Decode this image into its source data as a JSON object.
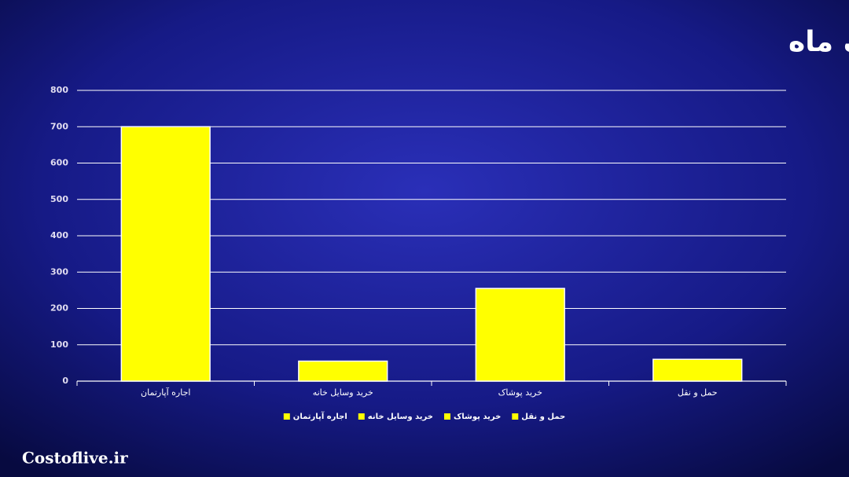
{
  "chart_data": {
    "type": "bar",
    "title": "کلیات هزینه ها برای یک ماه",
    "categories": [
      "اجاره آپارتمان",
      "خرید وسایل خانه",
      "خرید پوشاک",
      "حمل و نقل"
    ],
    "values": [
      700,
      55,
      255,
      60
    ],
    "color": "#ffff00",
    "ylim": [
      0,
      800
    ],
    "yticks": [
      0,
      100,
      200,
      300,
      400,
      500,
      600,
      700,
      800
    ],
    "grid": true,
    "legend": "bottom"
  },
  "watermark": "Costoflive.ir"
}
